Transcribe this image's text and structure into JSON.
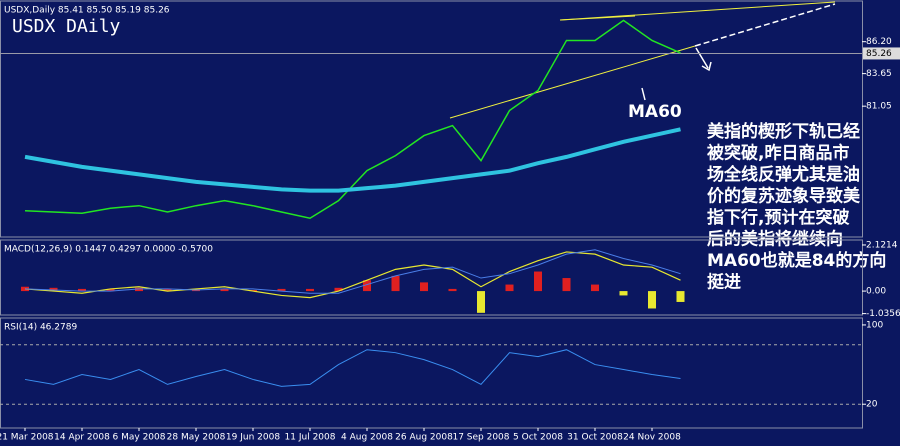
{
  "chart_data": [
    {
      "type": "line",
      "title": "USDX,Daily  85.41 85.50 85.19 85.26",
      "subtitle": "USDX DAily",
      "ylim": [
        70.6,
        89.45
      ],
      "yticks": [
        {
          "value": 86.2,
          "label": "86.20"
        },
        83.65,
        81.05
      ],
      "last_price": 85.26,
      "series": [
        {
          "color": "#22e622",
          "width": 1.5,
          "values": [
            72.7,
            72.6,
            72.5,
            72.9,
            73.1,
            72.6,
            73.1,
            73.5,
            73.1,
            72.6,
            72.1,
            73.5,
            75.9,
            77.1,
            78.7,
            79.5,
            76.7,
            80.7,
            82.3,
            86.3,
            86.3,
            87.9,
            86.3,
            85.3
          ]
        },
        {
          "name": "MA60",
          "color": "#2fc3e0",
          "width": 4,
          "values": [
            77.0,
            76.6,
            76.2,
            75.9,
            75.6,
            75.3,
            75.0,
            74.8,
            74.6,
            74.4,
            74.3,
            74.3,
            74.5,
            74.7,
            75.0,
            75.3,
            75.6,
            75.9,
            76.5,
            77.0,
            77.6,
            78.2,
            78.7,
            79.2
          ]
        }
      ],
      "annotation_lines": [
        "美指的楔形下轨已经",
        "被突破,昨日商品市",
        "场全线反弹尤其是油",
        "价的复苏迹象导致美",
        "指下行,预计在突破",
        "后的美指将继续向",
        "MA60也就是84的方向",
        "挺进"
      ]
    },
    {
      "type": "combo",
      "title": "MACD(12,26,9) 0.1447 0.4297 0.0000 -0.5700",
      "ylim": [
        -1.1,
        2.35
      ],
      "yticks": [
        2.1214,
        {
          "value": 0,
          "label": "0.00"
        },
        -1.0356
      ],
      "series": [
        {
          "style": "bar",
          "color": "#e02020",
          "negative_color": "#e8e830",
          "values": [
            0.2,
            0.15,
            0.1,
            0.1,
            0.15,
            0.1,
            0.1,
            0.1,
            0.05,
            0.1,
            0.1,
            0.15,
            0.5,
            0.7,
            0.4,
            0.1,
            -1.0,
            0.3,
            0.9,
            0.6,
            0.3,
            -0.2,
            -0.8,
            -0.5
          ]
        },
        {
          "style": "line",
          "color": "#e8e830",
          "width": 1.2,
          "values": [
            0.1,
            0.0,
            -0.1,
            0.1,
            0.2,
            0.0,
            0.1,
            0.2,
            0.0,
            -0.2,
            -0.3,
            0.0,
            0.5,
            1.0,
            1.2,
            1.0,
            0.2,
            0.9,
            1.4,
            1.8,
            1.7,
            1.2,
            1.1,
            0.5
          ]
        },
        {
          "style": "line",
          "color": "#4a7ee8",
          "width": 1,
          "values": [
            0.1,
            0.05,
            0,
            0,
            0.1,
            0.1,
            0.05,
            0.1,
            0.1,
            0,
            -0.1,
            -0.1,
            0.3,
            0.7,
            1.0,
            1.1,
            0.6,
            0.8,
            1.2,
            1.7,
            1.9,
            1.5,
            1.2,
            0.8
          ]
        }
      ]
    },
    {
      "type": "line",
      "title": "RSI(14) 46.2789",
      "ylim": [
        -4,
        107
      ],
      "yticks": [
        100,
        20
      ],
      "levels": [
        80,
        20
      ],
      "categories": [
        "21 Mar 2008",
        null,
        "14 Apr 2008",
        null,
        "6 May 2008",
        null,
        "28 May 2008",
        null,
        "19 Jun 2008",
        null,
        "11 Jul 2008",
        null,
        "4 Aug 2008",
        null,
        "26 Aug 2008",
        null,
        "17 Sep 2008",
        null,
        "5 Oct 2008",
        null,
        "31 Oct 2008",
        null,
        "24 Nov 2008",
        null
      ],
      "series": [
        {
          "color": "#3a8ef0",
          "width": 1,
          "values": [
            45,
            40,
            50,
            45,
            55,
            40,
            48,
            55,
            45,
            38,
            40,
            60,
            75,
            72,
            65,
            55,
            40,
            72,
            68,
            75,
            60,
            55,
            50,
            46
          ]
        }
      ]
    }
  ]
}
